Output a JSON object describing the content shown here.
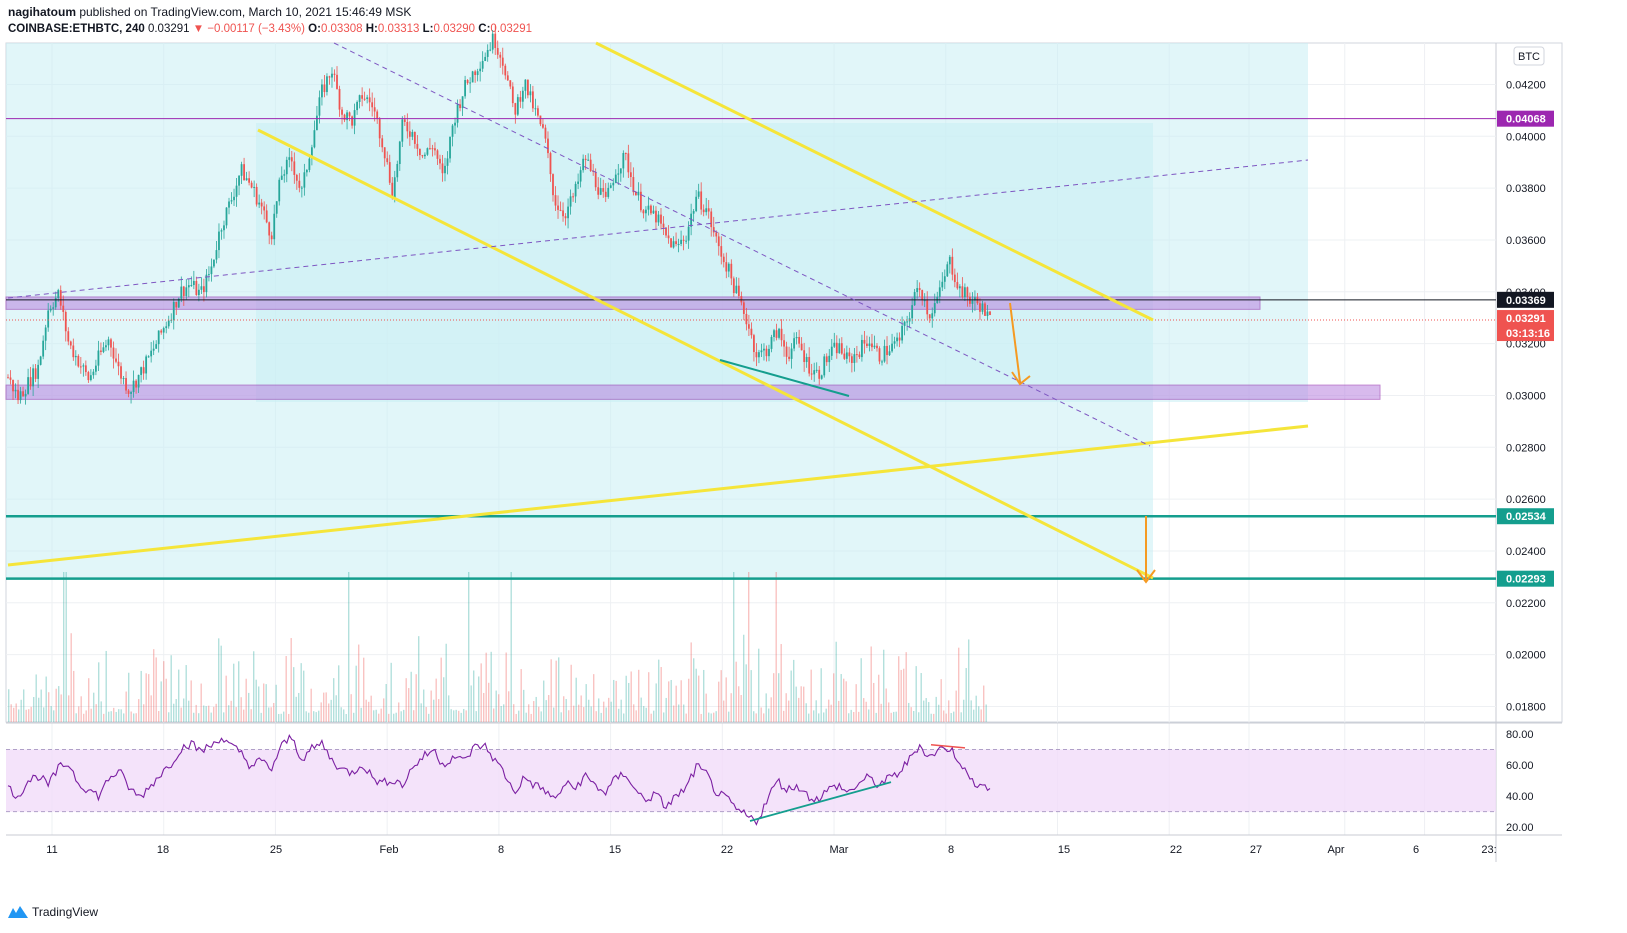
{
  "header": {
    "line1_user": "nagihatoum",
    "line1_rest": " published on TradingView.com, March 10, 2021 15:46:49 MSK",
    "symbol": "COINBASE:ETHBTC, 240",
    "last": "0.03291",
    "change": "−0.00117 (−3.43%)",
    "o_label": "O:",
    "o": "0.03308",
    "h_label": "H:",
    "h": "0.03313",
    "l_label": "L:",
    "l": "0.03290",
    "c_label": "C:",
    "c": "0.03291"
  },
  "footer": {
    "brand": "TradingView"
  },
  "colors": {
    "channel_fill": "#c9eef4",
    "yellow": "#f5e53a",
    "purple_zone": "#b983e0",
    "purple_line": "#9c27b0",
    "teal": "#149e8e",
    "orange": "#f59a22",
    "red": "#ef5350",
    "green": "#26a69a",
    "rsi_line": "#7b1fa2",
    "rsi_bg": "#f1dcf9"
  },
  "chart_data": {
    "type": "candlestick",
    "currency_badge": "BTC",
    "y_ticks": [
      "0.04200",
      "0.04000",
      "0.03800",
      "0.03600",
      "0.03400",
      "0.03200",
      "0.03000",
      "0.02800",
      "0.02600",
      "0.02400",
      "0.02200",
      "0.02000",
      "0.01800"
    ],
    "ylim": [
      0.0174,
      0.0436
    ],
    "x_ticks": [
      "11",
      "18",
      "25",
      "Feb",
      "8",
      "15",
      "22",
      "Mar",
      "8",
      "15",
      "22",
      "27",
      "Apr",
      "6",
      "23:"
    ],
    "price_labels": [
      {
        "value": "0.04068",
        "bg": "#9c27b0",
        "fg": "#ffffff"
      },
      {
        "value": "0.03369",
        "bg": "#131722",
        "fg": "#ffffff"
      },
      {
        "value": "0.03291",
        "bg": "#ef5350",
        "fg": "#ffffff"
      },
      {
        "value": "03:13:16",
        "bg": "#ef5350",
        "fg": "#ffffff"
      },
      {
        "value": "0.02534",
        "bg": "#149e8e",
        "fg": "#ffffff"
      },
      {
        "value": "0.02293",
        "bg": "#149e8e",
        "fg": "#ffffff"
      }
    ],
    "horizontal_levels": [
      0.04068,
      0.02534,
      0.02293
    ],
    "zones": [
      {
        "top": 0.0338,
        "bottom": 0.0334,
        "x_end": "2021-03-27"
      },
      {
        "top": 0.0304,
        "bottom": 0.02985,
        "x_end": "2021-04-04"
      }
    ],
    "close_series": [
      0.0307,
      0.0299,
      0.0305,
      0.0311,
      0.0334,
      0.0339,
      0.032,
      0.0313,
      0.0306,
      0.0315,
      0.0322,
      0.0309,
      0.0302,
      0.0308,
      0.0315,
      0.0323,
      0.0331,
      0.034,
      0.0343,
      0.0339,
      0.0348,
      0.0365,
      0.0375,
      0.0387,
      0.0381,
      0.0373,
      0.0362,
      0.0385,
      0.0391,
      0.0378,
      0.0398,
      0.0417,
      0.0426,
      0.0409,
      0.0406,
      0.0416,
      0.0412,
      0.0398,
      0.0378,
      0.0405,
      0.0401,
      0.0392,
      0.0397,
      0.0383,
      0.0406,
      0.0418,
      0.0425,
      0.0431,
      0.0438,
      0.0428,
      0.0409,
      0.0421,
      0.041,
      0.04,
      0.0375,
      0.037,
      0.0378,
      0.0392,
      0.0383,
      0.0374,
      0.0387,
      0.0392,
      0.0378,
      0.0371,
      0.0369,
      0.0361,
      0.0357,
      0.0362,
      0.0377,
      0.0372,
      0.0359,
      0.035,
      0.0339,
      0.0329,
      0.0315,
      0.0318,
      0.0325,
      0.0316,
      0.0321,
      0.0312,
      0.0308,
      0.0315,
      0.0319,
      0.0313,
      0.0317,
      0.0322,
      0.0315,
      0.0318,
      0.0321,
      0.0331,
      0.0343,
      0.0331,
      0.0339,
      0.0352,
      0.0341,
      0.0337,
      0.0335,
      0.0329
    ],
    "rsi": {
      "ticks": [
        "80.00",
        "60.00",
        "40.00",
        "20.00"
      ],
      "ylim": [
        15,
        87
      ],
      "upper": 70,
      "lower": 30,
      "values": [
        45,
        40,
        50,
        53,
        47,
        58,
        61,
        48,
        44,
        40,
        52,
        56,
        45,
        39,
        46,
        54,
        60,
        70,
        74,
        69,
        72,
        78,
        72,
        68,
        59,
        63,
        57,
        72,
        78,
        64,
        70,
        74,
        63,
        57,
        55,
        61,
        52,
        48,
        51,
        47,
        59,
        65,
        70,
        60,
        66,
        62,
        71,
        73,
        64,
        55,
        42,
        52,
        47,
        44,
        37,
        48,
        45,
        53,
        47,
        42,
        51,
        55,
        43,
        38,
        41,
        33,
        40,
        45,
        59,
        54,
        42,
        38,
        31,
        27,
        24,
        38,
        50,
        44,
        47,
        40,
        38,
        44,
        47,
        42,
        48,
        52,
        47,
        51,
        55,
        63,
        73,
        65,
        70,
        71,
        63,
        50,
        48,
        45
      ]
    }
  }
}
